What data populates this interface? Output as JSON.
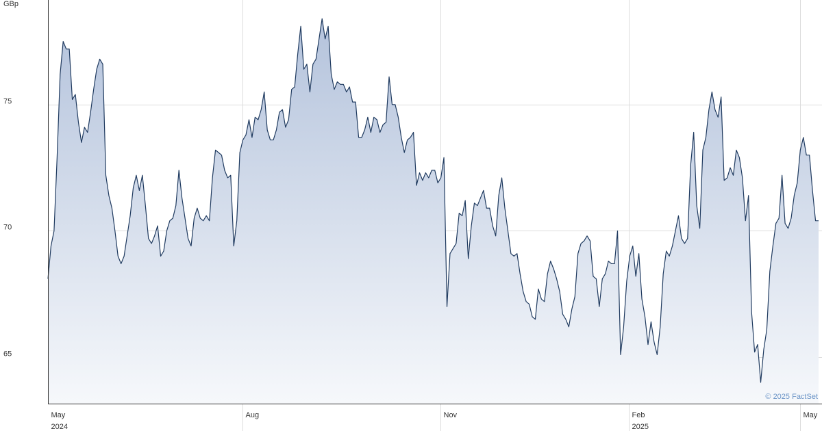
{
  "chart_data": {
    "type": "area",
    "y_label": "GBp",
    "credit": "© 2025 FactSet",
    "color": "#1f3a5f",
    "grid": true,
    "ylim": [
      63.16,
      79.14
    ],
    "yticks": [
      65,
      70,
      75
    ],
    "xlim": [
      0,
      253
    ],
    "xticks": [
      {
        "value": 0,
        "label": "May",
        "sublabel": "2024"
      },
      {
        "value": 63.9,
        "label": "Aug"
      },
      {
        "value": 128.9,
        "label": "Nov"
      },
      {
        "value": 190.7,
        "label": "Feb",
        "sublabel": "2025"
      },
      {
        "value": 247,
        "label": "May"
      }
    ],
    "values": [
      68.1,
      69.4,
      70.0,
      72.9,
      76.2,
      77.5,
      77.2,
      77.2,
      75.2,
      75.4,
      74.3,
      73.5,
      74.1,
      73.9,
      74.7,
      75.6,
      76.4,
      76.8,
      76.6,
      72.2,
      71.4,
      70.9,
      70.0,
      69.0,
      68.7,
      69.0,
      69.8,
      70.6,
      71.7,
      72.2,
      71.6,
      72.2,
      71.0,
      69.7,
      69.5,
      69.8,
      70.2,
      69.0,
      69.2,
      70.0,
      70.4,
      70.5,
      71.0,
      72.4,
      71.3,
      70.5,
      69.7,
      69.4,
      70.5,
      70.9,
      70.5,
      70.4,
      70.6,
      70.4,
      72.1,
      73.2,
      73.1,
      73.0,
      72.4,
      72.1,
      72.2,
      69.4,
      70.4,
      73.1,
      73.6,
      73.8,
      74.4,
      73.7,
      74.5,
      74.4,
      74.8,
      75.5,
      74.0,
      73.6,
      73.6,
      74.0,
      74.7,
      74.8,
      74.1,
      74.4,
      75.6,
      75.7,
      77.0,
      78.1,
      76.4,
      76.6,
      75.5,
      76.6,
      76.8,
      77.6,
      78.4,
      77.6,
      78.1,
      76.2,
      75.6,
      75.9,
      75.8,
      75.8,
      75.5,
      75.7,
      75.1,
      75.1,
      73.7,
      73.7,
      74.0,
      74.5,
      73.9,
      74.5,
      74.4,
      73.9,
      74.2,
      74.3,
      76.1,
      75.0,
      75.0,
      74.5,
      73.7,
      73.1,
      73.6,
      73.7,
      73.9,
      71.8,
      72.3,
      72.0,
      72.3,
      72.1,
      72.4,
      72.4,
      71.9,
      72.1,
      72.9,
      67.0,
      69.1,
      69.3,
      69.5,
      70.7,
      70.6,
      71.2,
      68.9,
      70.2,
      71.1,
      71.0,
      71.3,
      71.6,
      70.9,
      70.9,
      70.2,
      69.8,
      71.4,
      72.1,
      70.9,
      70.0,
      69.1,
      69.0,
      69.1,
      68.3,
      67.6,
      67.2,
      67.1,
      66.6,
      66.5,
      67.7,
      67.3,
      67.2,
      68.3,
      68.8,
      68.5,
      68.1,
      67.6,
      66.7,
      66.5,
      66.2,
      66.9,
      67.4,
      69.1,
      69.5,
      69.6,
      69.8,
      69.6,
      68.2,
      68.1,
      67.0,
      68.1,
      68.3,
      68.8,
      68.7,
      68.7,
      70.0,
      65.1,
      66.2,
      68.0,
      69.0,
      69.4,
      68.2,
      69.1,
      67.3,
      66.6,
      65.5,
      66.4,
      65.6,
      65.1,
      66.2,
      68.3,
      69.2,
      69.0,
      69.4,
      70.0,
      70.6,
      69.7,
      69.5,
      69.7,
      72.6,
      73.9,
      71.0,
      70.1,
      73.2,
      73.7,
      74.8,
      75.5,
      74.8,
      74.5,
      75.3,
      72.0,
      72.1,
      72.5,
      72.2,
      73.2,
      72.9,
      72.1,
      70.4,
      71.4,
      66.8,
      65.2,
      65.5,
      64.0,
      65.3,
      66.1,
      68.4,
      69.4,
      70.3,
      70.5,
      72.2,
      70.3,
      70.1,
      70.5,
      71.4,
      71.9,
      73.2,
      73.7,
      73.0,
      73.0,
      71.6,
      70.4,
      70.4
    ]
  }
}
